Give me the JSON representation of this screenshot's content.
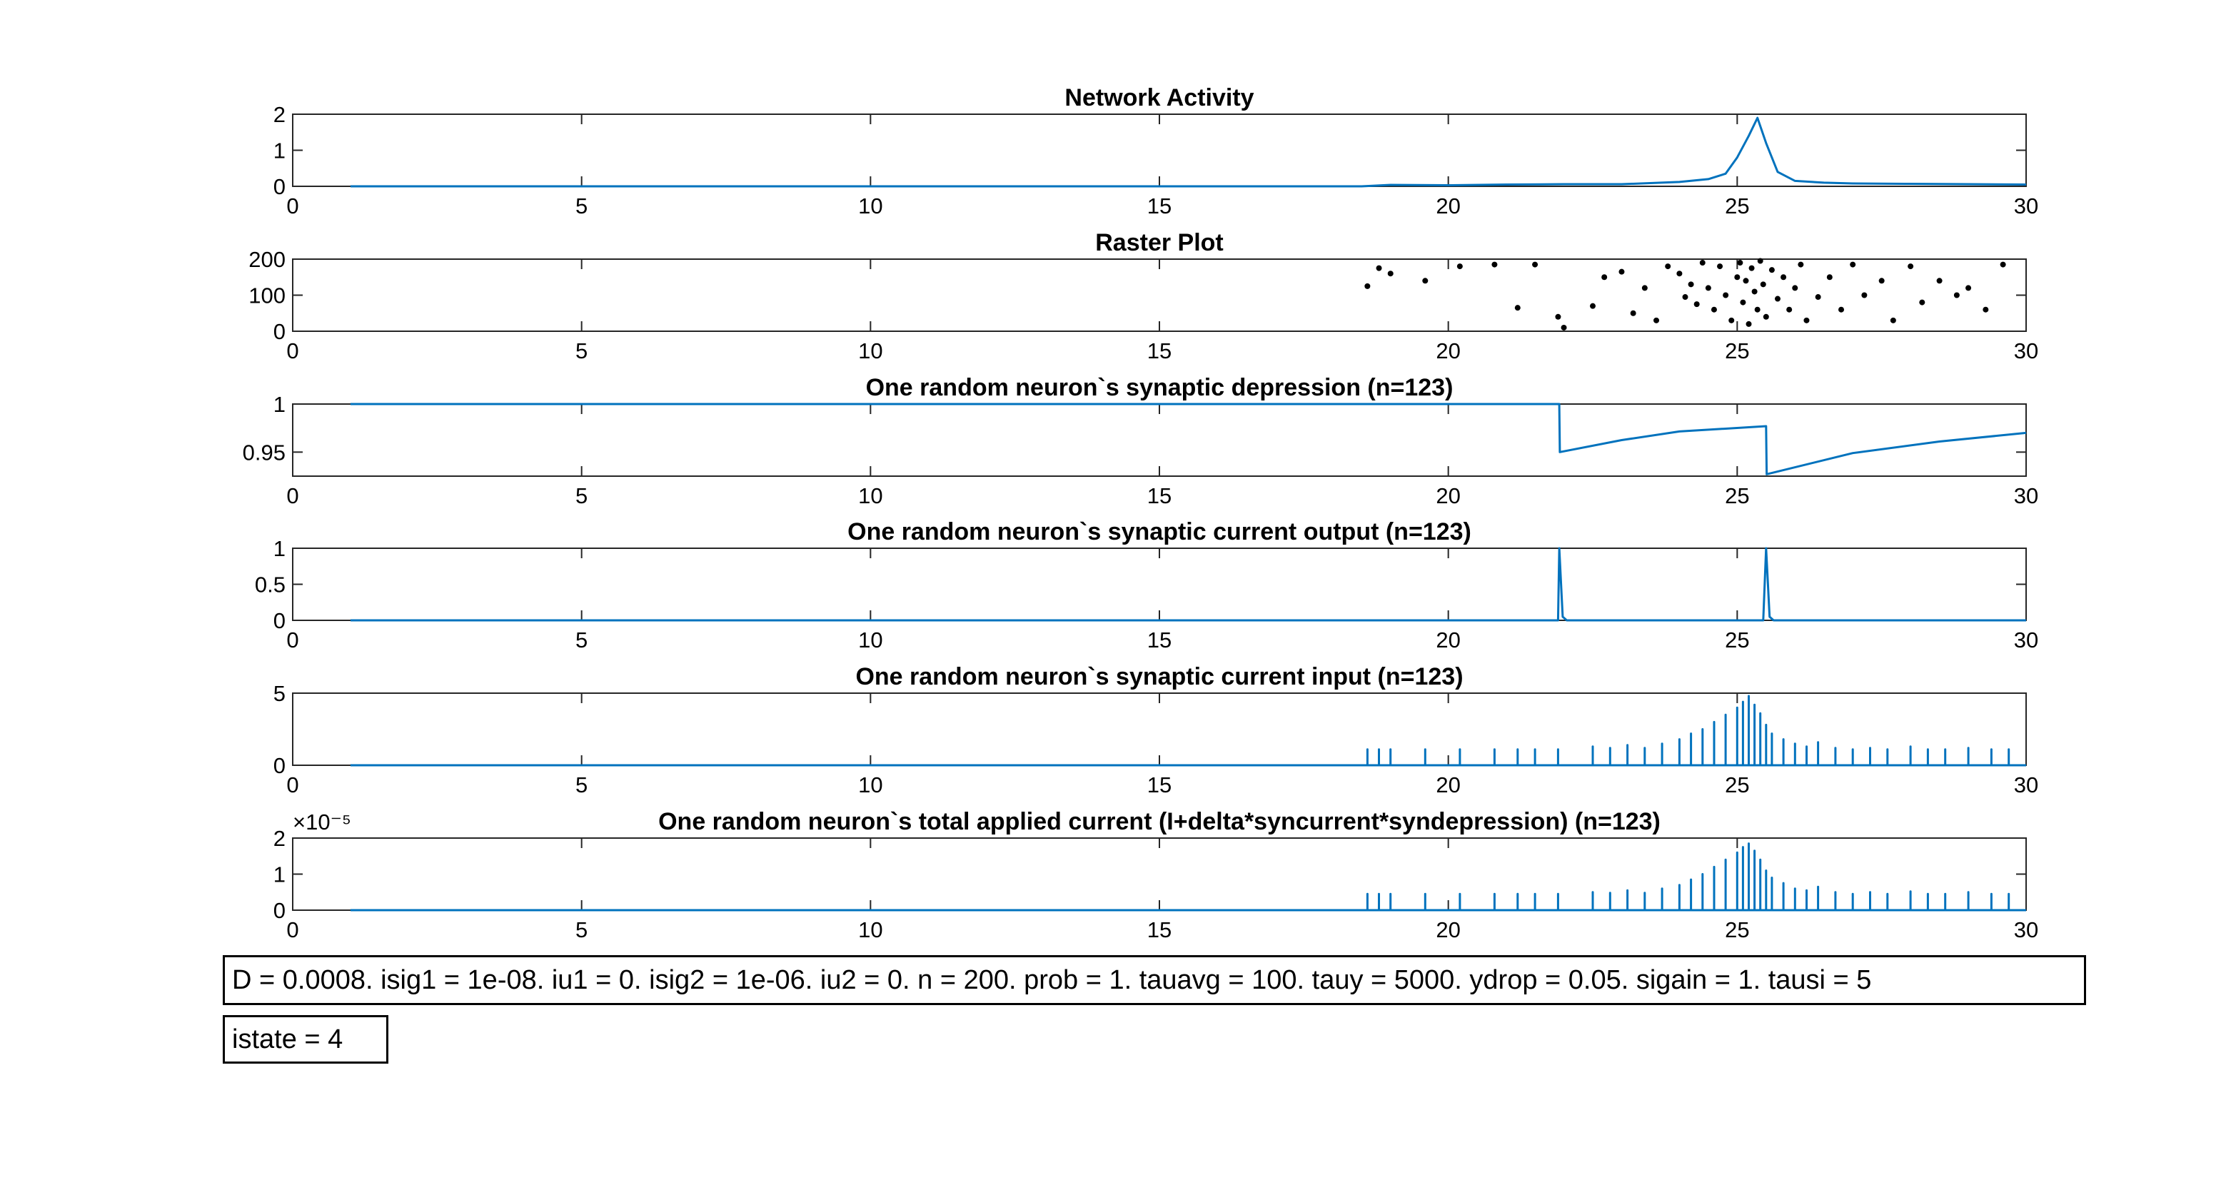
{
  "figure": {
    "params_text": "D = 0.0008. isig1 = 1e-08. iu1 = 0. isig2 = 1e-06. iu2 = 0. n = 200. prob = 1. tauavg = 100. tauy = 5000. ydrop = 0.05. sigain = 1. tausi = 5",
    "state_text": "istate = 4",
    "line_color": "#0072BD",
    "dot_color": "#000000",
    "axis_color": "#262626"
  },
  "chart_data": [
    {
      "type": "line",
      "title": "Network Activity",
      "xlim": [
        0,
        30
      ],
      "ylim": [
        0,
        2
      ],
      "xticks": [
        0,
        5,
        10,
        15,
        20,
        25,
        30
      ],
      "yticks": [
        0,
        1,
        2
      ],
      "exponent": "",
      "x": [
        1,
        18.5,
        19,
        20,
        21,
        22,
        23,
        24,
        24.5,
        24.8,
        25,
        25.2,
        25.35,
        25.5,
        25.7,
        26,
        26.5,
        27,
        28,
        29,
        30
      ],
      "y": [
        0,
        0,
        0.04,
        0.03,
        0.05,
        0.06,
        0.06,
        0.12,
        0.2,
        0.35,
        0.8,
        1.4,
        1.9,
        1.2,
        0.4,
        0.15,
        0.1,
        0.08,
        0.07,
        0.06,
        0.05
      ]
    },
    {
      "type": "scatter",
      "title": "Raster Plot",
      "xlim": [
        0,
        30
      ],
      "ylim": [
        0,
        200
      ],
      "xticks": [
        0,
        5,
        10,
        15,
        20,
        25,
        30
      ],
      "yticks": [
        0,
        100,
        200
      ],
      "exponent": "",
      "x": [
        18.6,
        18.8,
        19.0,
        19.6,
        20.2,
        20.8,
        21.2,
        21.5,
        21.9,
        22.0,
        22.5,
        22.7,
        23.0,
        23.2,
        23.4,
        23.6,
        23.8,
        24.0,
        24.1,
        24.2,
        24.3,
        24.4,
        24.5,
        24.6,
        24.7,
        24.8,
        24.9,
        25.0,
        25.05,
        25.1,
        25.15,
        25.2,
        25.25,
        25.3,
        25.35,
        25.4,
        25.45,
        25.5,
        25.6,
        25.7,
        25.8,
        25.9,
        26.0,
        26.1,
        26.2,
        26.4,
        26.6,
        26.8,
        27.0,
        27.2,
        27.5,
        27.7,
        28.0,
        28.2,
        28.5,
        28.8,
        29.0,
        29.3,
        29.6
      ],
      "y": [
        125,
        175,
        160,
        140,
        180,
        185,
        65,
        185,
        40,
        10,
        70,
        150,
        165,
        50,
        120,
        30,
        180,
        160,
        95,
        130,
        75,
        190,
        120,
        60,
        180,
        100,
        30,
        150,
        190,
        80,
        140,
        20,
        175,
        110,
        60,
        195,
        130,
        40,
        170,
        90,
        150,
        60,
        120,
        185,
        30,
        95,
        150,
        60,
        185,
        100,
        140,
        30,
        180,
        80,
        140,
        100,
        120,
        60,
        185
      ]
    },
    {
      "type": "line",
      "title": "One random neuron`s synaptic depression (n=123)",
      "xlim": [
        0,
        30
      ],
      "ylim": [
        0.925,
        1
      ],
      "xticks": [
        0,
        5,
        10,
        15,
        20,
        25,
        30
      ],
      "yticks": [
        0.95,
        1
      ],
      "exponent": "",
      "x": [
        1,
        21.92,
        21.93,
        23,
        24,
        25.5,
        25.51,
        27,
        28.5,
        30
      ],
      "y": [
        1,
        1,
        0.95,
        0.9625,
        0.9715,
        0.977,
        0.927,
        0.949,
        0.961,
        0.97
      ]
    },
    {
      "type": "line",
      "title": "One random neuron`s synaptic current output (n=123)",
      "xlim": [
        0,
        30
      ],
      "ylim": [
        0,
        1
      ],
      "xticks": [
        0,
        5,
        10,
        15,
        20,
        25,
        30
      ],
      "yticks": [
        0,
        0.5,
        1
      ],
      "exponent": "",
      "x": [
        1,
        21.9,
        21.92,
        21.98,
        22.05,
        25.45,
        25.5,
        25.56,
        25.63,
        30
      ],
      "y": [
        0,
        0,
        1,
        0.05,
        0,
        0,
        1,
        0.05,
        0,
        0
      ]
    },
    {
      "type": "line",
      "title": "One random neuron`s synaptic current input (n=123)",
      "xlim": [
        0,
        30
      ],
      "ylim": [
        0,
        5
      ],
      "xticks": [
        0,
        5,
        10,
        15,
        20,
        25,
        30
      ],
      "yticks": [
        0,
        5
      ],
      "exponent": "",
      "x": [
        1,
        18.6,
        18.6,
        18.6,
        18.8,
        18.8,
        18.8,
        19.0,
        19.0,
        19.0,
        19.6,
        19.6,
        19.6,
        20.2,
        20.2,
        20.2,
        20.8,
        20.8,
        20.8,
        21.2,
        21.2,
        21.2,
        21.5,
        21.5,
        21.5,
        21.9,
        21.9,
        21.9,
        22.5,
        22.5,
        22.5,
        22.8,
        22.8,
        22.8,
        23.1,
        23.1,
        23.1,
        23.4,
        23.4,
        23.4,
        23.7,
        23.7,
        23.7,
        24.0,
        24.0,
        24.0,
        24.2,
        24.2,
        24.2,
        24.4,
        24.4,
        24.4,
        24.6,
        24.6,
        24.6,
        24.8,
        24.8,
        24.8,
        25.0,
        25.0,
        25.0,
        25.1,
        25.1,
        25.1,
        25.2,
        25.2,
        25.2,
        25.3,
        25.3,
        25.3,
        25.4,
        25.4,
        25.4,
        25.5,
        25.5,
        25.5,
        25.6,
        25.6,
        25.6,
        25.8,
        25.8,
        25.8,
        26.0,
        26.0,
        26.0,
        26.2,
        26.2,
        26.2,
        26.4,
        26.4,
        26.4,
        26.7,
        26.7,
        26.7,
        27.0,
        27.0,
        27.0,
        27.3,
        27.3,
        27.3,
        27.6,
        27.6,
        27.6,
        28.0,
        28.0,
        28.0,
        28.3,
        28.3,
        28.3,
        28.6,
        28.6,
        28.6,
        29.0,
        29.0,
        29.0,
        29.4,
        29.4,
        29.4,
        29.7,
        29.7,
        29.7,
        30
      ],
      "y": [
        0,
        0,
        1.1,
        0,
        0,
        1.1,
        0,
        0,
        1.1,
        0,
        0,
        1.1,
        0,
        0,
        1.1,
        0,
        0,
        1.1,
        0,
        0,
        1.1,
        0,
        0,
        1.1,
        0,
        0,
        1.1,
        0,
        0,
        1.3,
        0,
        0,
        1.2,
        0,
        0,
        1.4,
        0,
        0,
        1.2,
        0,
        0,
        1.5,
        0,
        0,
        1.8,
        0,
        0,
        2.2,
        0,
        0,
        2.5,
        0,
        0,
        3.0,
        0,
        0,
        3.5,
        0,
        0,
        4.0,
        0,
        0,
        4.4,
        0,
        0,
        4.8,
        0,
        0,
        4.2,
        0,
        0,
        3.6,
        0,
        0,
        2.8,
        0,
        0,
        2.2,
        0,
        0,
        1.8,
        0,
        0,
        1.5,
        0,
        0,
        1.3,
        0,
        0,
        1.6,
        0,
        0,
        1.2,
        0,
        0,
        1.1,
        0,
        0,
        1.2,
        0,
        0,
        1.1,
        0,
        0,
        1.3,
        0,
        0,
        1.1,
        0,
        0,
        1.1,
        0,
        0,
        1.2,
        0,
        0,
        1.1,
        0,
        0,
        1.1,
        0,
        0
      ]
    },
    {
      "type": "line",
      "title": "One random neuron`s total applied current (I+delta*syncurrent*syndepression) (n=123)",
      "xlim": [
        0,
        30
      ],
      "ylim": [
        0,
        2
      ],
      "xticks": [
        0,
        5,
        10,
        15,
        20,
        25,
        30
      ],
      "yticks": [
        0,
        1,
        2
      ],
      "exponent": "×10⁻⁵",
      "x": [
        1,
        18.6,
        18.6,
        18.6,
        18.8,
        18.8,
        18.8,
        19.0,
        19.0,
        19.0,
        19.6,
        19.6,
        19.6,
        20.2,
        20.2,
        20.2,
        20.8,
        20.8,
        20.8,
        21.2,
        21.2,
        21.2,
        21.5,
        21.5,
        21.5,
        21.9,
        21.9,
        21.9,
        22.5,
        22.5,
        22.5,
        22.8,
        22.8,
        22.8,
        23.1,
        23.1,
        23.1,
        23.4,
        23.4,
        23.4,
        23.7,
        23.7,
        23.7,
        24.0,
        24.0,
        24.0,
        24.2,
        24.2,
        24.2,
        24.4,
        24.4,
        24.4,
        24.6,
        24.6,
        24.6,
        24.8,
        24.8,
        24.8,
        25.0,
        25.0,
        25.0,
        25.1,
        25.1,
        25.1,
        25.2,
        25.2,
        25.2,
        25.3,
        25.3,
        25.3,
        25.4,
        25.4,
        25.4,
        25.5,
        25.5,
        25.5,
        25.6,
        25.6,
        25.6,
        25.8,
        25.8,
        25.8,
        26.0,
        26.0,
        26.0,
        26.2,
        26.2,
        26.2,
        26.4,
        26.4,
        26.4,
        26.7,
        26.7,
        26.7,
        27.0,
        27.0,
        27.0,
        27.3,
        27.3,
        27.3,
        27.6,
        27.6,
        27.6,
        28.0,
        28.0,
        28.0,
        28.3,
        28.3,
        28.3,
        28.6,
        28.6,
        28.6,
        29.0,
        29.0,
        29.0,
        29.4,
        29.4,
        29.4,
        29.7,
        29.7,
        29.7,
        30
      ],
      "y": [
        0,
        0,
        0.45,
        0,
        0,
        0.45,
        0,
        0,
        0.45,
        0,
        0,
        0.45,
        0,
        0,
        0.45,
        0,
        0,
        0.45,
        0,
        0,
        0.45,
        0,
        0,
        0.45,
        0,
        0,
        0.45,
        0,
        0,
        0.5,
        0,
        0,
        0.48,
        0,
        0,
        0.55,
        0,
        0,
        0.48,
        0,
        0,
        0.6,
        0,
        0,
        0.7,
        0,
        0,
        0.85,
        0,
        0,
        1.0,
        0,
        0,
        1.2,
        0,
        0,
        1.4,
        0,
        0,
        1.6,
        0,
        0,
        1.75,
        0,
        0,
        1.85,
        0,
        0,
        1.65,
        0,
        0,
        1.4,
        0,
        0,
        1.1,
        0,
        0,
        0.9,
        0,
        0,
        0.75,
        0,
        0,
        0.6,
        0,
        0,
        0.55,
        0,
        0,
        0.65,
        0,
        0,
        0.5,
        0,
        0,
        0.45,
        0,
        0,
        0.5,
        0,
        0,
        0.45,
        0,
        0,
        0.52,
        0,
        0,
        0.45,
        0,
        0,
        0.45,
        0,
        0,
        0.5,
        0,
        0,
        0.45,
        0,
        0,
        0.45,
        0,
        0
      ]
    }
  ]
}
